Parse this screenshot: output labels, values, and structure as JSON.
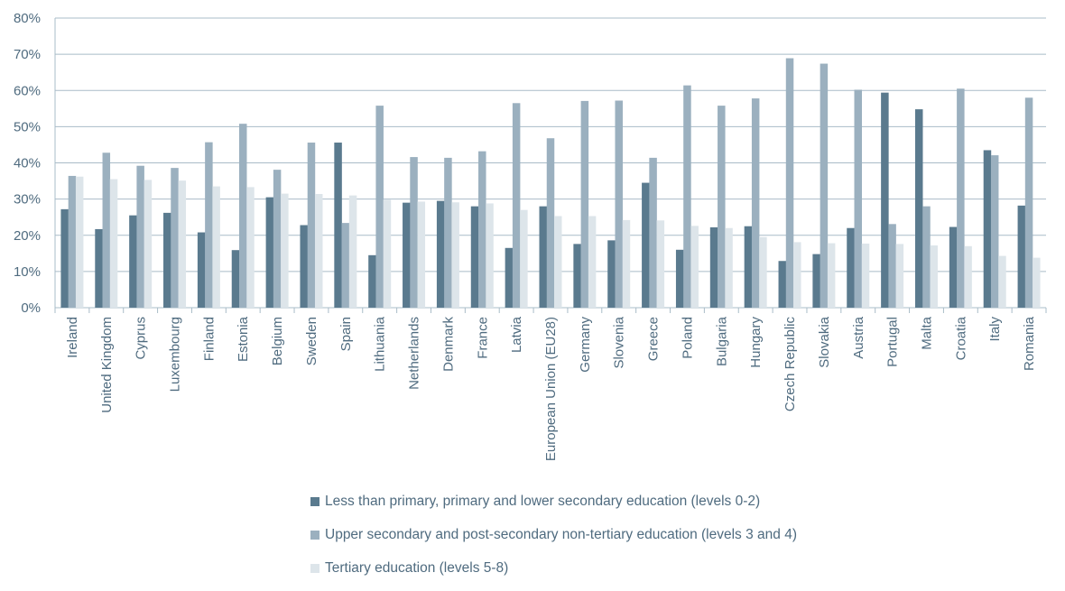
{
  "chart_data": {
    "type": "bar",
    "title": "",
    "xlabel": "",
    "ylabel": "",
    "ylim": [
      0,
      80
    ],
    "yticks": [
      "0%",
      "10%",
      "20%",
      "30%",
      "40%",
      "50%",
      "60%",
      "70%",
      "80%"
    ],
    "grid": true,
    "legend_position": "bottom",
    "categories": [
      "Ireland",
      "United Kingdom",
      "Cyprus",
      "Luxembourg",
      "Finland",
      "Estonia",
      "Belgium",
      "Sweden",
      "Spain",
      "Lithuania",
      "Netherlands",
      "Denmark",
      "France",
      "Latvia",
      "European Union (EU28)",
      "Germany",
      "Slovenia",
      "Greece",
      "Poland",
      "Bulgaria",
      "Hungary",
      "Czech Republic",
      "Slovakia",
      "Austria",
      "Portugal",
      "Malta",
      "Croatia",
      "Italy",
      "Romania"
    ],
    "series": [
      {
        "name": "Less than primary, primary and lower secondary education (levels 0-2)",
        "color": "#5a7a8e",
        "values": [
          27.2,
          21.7,
          25.5,
          26.2,
          20.8,
          15.9,
          30.5,
          22.8,
          45.6,
          14.5,
          29.0,
          29.5,
          28.0,
          16.5,
          28.0,
          17.6,
          18.6,
          34.5,
          16.0,
          22.2,
          22.5,
          12.9,
          14.8,
          22.0,
          59.4,
          54.8,
          22.3,
          43.5,
          28.2
        ]
      },
      {
        "name": "Upper secondary and post-secondary non-tertiary education (levels 3 and 4)",
        "color": "#9bb0bf",
        "values": [
          36.4,
          42.8,
          39.2,
          38.6,
          45.7,
          50.8,
          38.1,
          45.6,
          23.4,
          55.8,
          41.6,
          41.4,
          43.2,
          56.5,
          46.8,
          57.1,
          57.2,
          41.4,
          61.4,
          55.8,
          57.8,
          68.9,
          67.4,
          60.2,
          23.1,
          28.0,
          60.5,
          42.1,
          58.0
        ]
      },
      {
        "name": "Tertiary education (levels 5-8)",
        "color": "#dde5ea",
        "values": [
          36.2,
          35.5,
          35.3,
          35.1,
          33.5,
          33.3,
          31.5,
          31.4,
          31.0,
          29.8,
          29.3,
          29.1,
          28.8,
          27.0,
          25.3,
          25.3,
          24.2,
          24.1,
          22.6,
          22.0,
          19.5,
          18.1,
          17.8,
          17.7,
          17.6,
          17.2,
          17.0,
          14.3,
          13.8
        ]
      }
    ]
  }
}
